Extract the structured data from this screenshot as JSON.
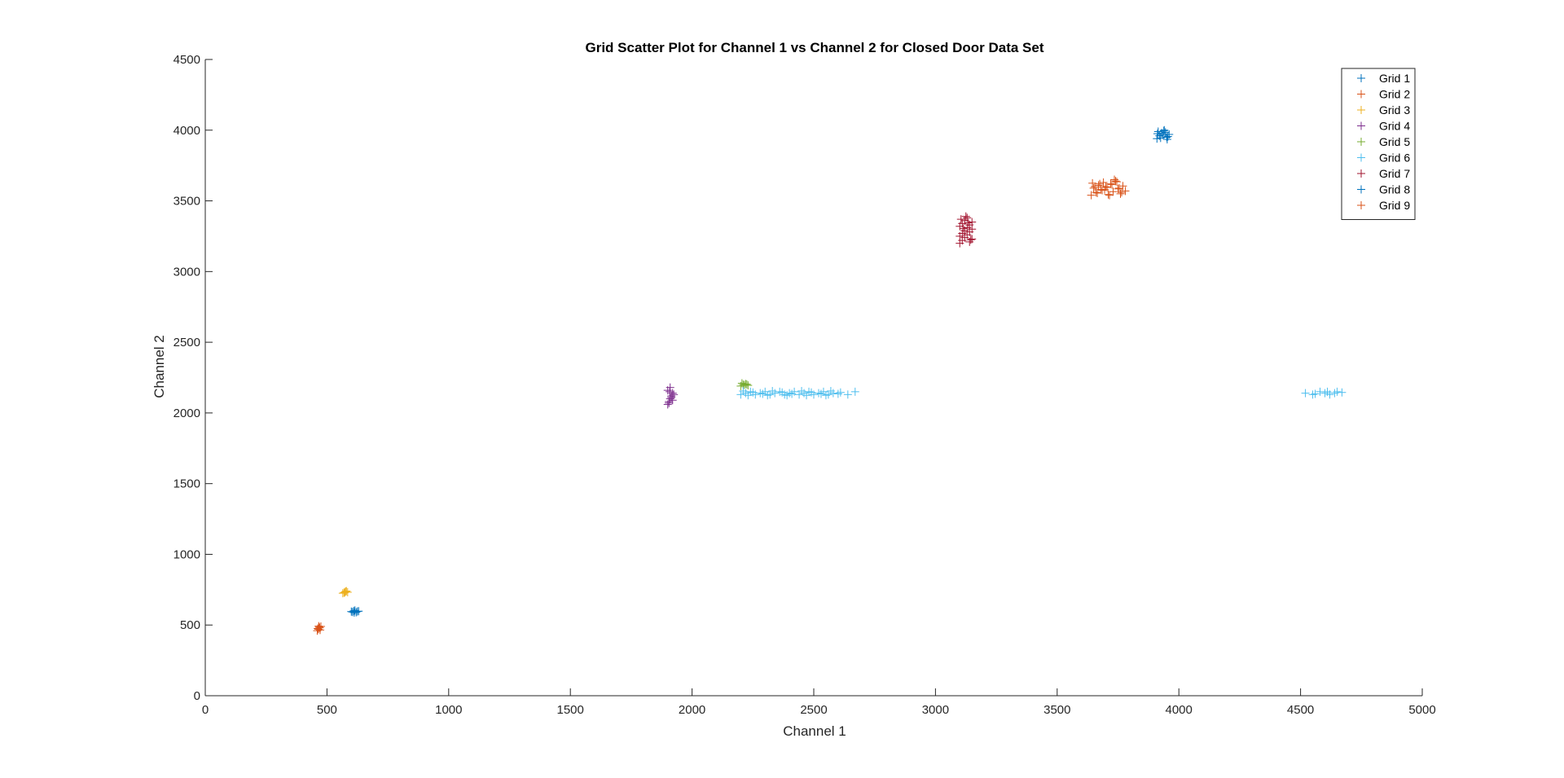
{
  "chart_data": {
    "type": "scatter",
    "title": "Grid Scatter Plot for Channel 1 vs Channel 2 for Closed Door Data Set",
    "xlabel": "Channel 1",
    "ylabel": "Channel 2",
    "xlim": [
      0,
      5000
    ],
    "ylim": [
      0,
      4500
    ],
    "xticks": [
      0,
      500,
      1000,
      1500,
      2000,
      2500,
      3000,
      3500,
      4000,
      4500,
      5000
    ],
    "yticks": [
      0,
      500,
      1000,
      1500,
      2000,
      2500,
      3000,
      3500,
      4000,
      4500
    ],
    "marker": "+",
    "grid": false,
    "legend_position": "top-right",
    "series": [
      {
        "name": "Grid 1",
        "color": "#0072BD",
        "x": [
          600,
          610,
          620,
          630,
          605,
          615,
          625,
          612
        ],
        "y": [
          595,
          600,
          590,
          598,
          592,
          603,
          596,
          588
        ]
      },
      {
        "name": "Grid 2",
        "color": "#D95319",
        "x": [
          460,
          465,
          470,
          475,
          462,
          468,
          472,
          466
        ],
        "y": [
          460,
          470,
          480,
          490,
          475,
          485,
          465,
          492
        ]
      },
      {
        "name": "Grid 3",
        "color": "#EDB120",
        "x": [
          565,
          570,
          575,
          580,
          585,
          572,
          578
        ],
        "y": [
          725,
          730,
          735,
          740,
          732,
          728,
          738
        ]
      },
      {
        "name": "Grid 4",
        "color": "#7E2F8E",
        "x": [
          1900,
          1905,
          1910,
          1915,
          1920,
          1900,
          1910,
          1920,
          1905,
          1915,
          1925,
          1908
        ],
        "y": [
          2060,
          2080,
          2100,
          2120,
          2140,
          2160,
          2180,
          2090,
          2070,
          2110,
          2130,
          2150
        ]
      },
      {
        "name": "Grid 5",
        "color": "#77AC30",
        "x": [
          2200,
          2210,
          2220,
          2230,
          2205,
          2215,
          2225
        ],
        "y": [
          2190,
          2200,
          2205,
          2195,
          2210,
          2198,
          2202
        ]
      },
      {
        "name": "Grid 6",
        "color": "#4DBEEE",
        "x": [
          2200,
          2220,
          2240,
          2260,
          2280,
          2300,
          2320,
          2340,
          2360,
          2380,
          2400,
          2420,
          2440,
          2460,
          2480,
          2500,
          2520,
          2540,
          2560,
          2580,
          2600,
          2640,
          2670,
          2210,
          2250,
          2290,
          2330,
          2370,
          2410,
          2450,
          2490,
          2530,
          2570,
          2610,
          2230,
          2310,
          2390,
          2470,
          2550,
          4520,
          4550,
          4580,
          4600,
          4620,
          4650,
          4670,
          4560,
          4610,
          4640
        ],
        "y": [
          2130,
          2140,
          2150,
          2130,
          2140,
          2150,
          2130,
          2140,
          2150,
          2130,
          2140,
          2150,
          2130,
          2140,
          2150,
          2130,
          2140,
          2150,
          2130,
          2140,
          2135,
          2130,
          2150,
          2155,
          2145,
          2135,
          2155,
          2145,
          2135,
          2155,
          2145,
          2135,
          2155,
          2145,
          2125,
          2125,
          2125,
          2125,
          2125,
          2140,
          2130,
          2150,
          2140,
          2130,
          2150,
          2145,
          2135,
          2150,
          2140
        ]
      },
      {
        "name": "Grid 7",
        "color": "#A2142F",
        "x": [
          3100,
          3110,
          3120,
          3130,
          3140,
          3150,
          3100,
          3110,
          3120,
          3130,
          3140,
          3150,
          3100,
          3110,
          3120,
          3130,
          3140,
          3150,
          3105,
          3125,
          3145,
          3115,
          3135
        ],
        "y": [
          3200,
          3220,
          3240,
          3260,
          3280,
          3300,
          3320,
          3340,
          3360,
          3380,
          3210,
          3230,
          3250,
          3270,
          3290,
          3310,
          3330,
          3350,
          3370,
          3390,
          3225,
          3305,
          3345
        ]
      },
      {
        "name": "Grid 8",
        "color": "#0072BD",
        "x": [
          3910,
          3920,
          3930,
          3940,
          3950,
          3960,
          3915,
          3925,
          3935,
          3945,
          3955,
          3912,
          3938,
          3952
        ],
        "y": [
          3940,
          3960,
          3980,
          4000,
          3950,
          3970,
          3990,
          3945,
          3965,
          3985,
          3955,
          3975,
          3995,
          3935
        ]
      },
      {
        "name": "Grid 9",
        "color": "#D95319",
        "x": [
          3640,
          3660,
          3680,
          3700,
          3720,
          3740,
          3760,
          3780,
          3650,
          3670,
          3690,
          3710,
          3730,
          3750,
          3770,
          3645,
          3665,
          3685,
          3705,
          3725,
          3745,
          3765,
          3655,
          3675,
          3695,
          3715,
          3735,
          3755
        ],
        "y": [
          3540,
          3560,
          3580,
          3600,
          3620,
          3640,
          3550,
          3570,
          3590,
          3610,
          3630,
          3545,
          3565,
          3585,
          3605,
          3625,
          3555,
          3575,
          3595,
          3615,
          3635,
          3560,
          3600,
          3620,
          3580,
          3540,
          3650,
          3590
        ]
      }
    ]
  }
}
